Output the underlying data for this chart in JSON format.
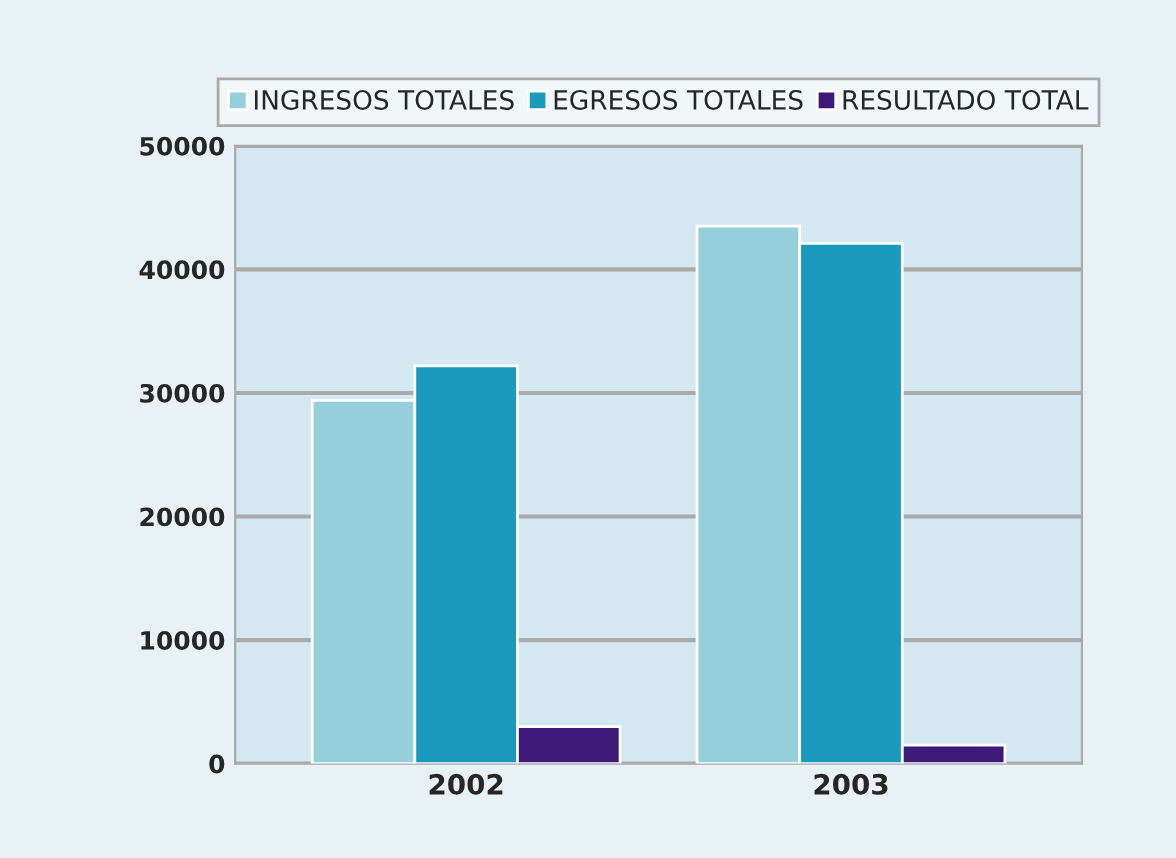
{
  "chart_data": {
    "type": "bar",
    "categories": [
      "2002",
      "2003"
    ],
    "series": [
      {
        "name": "INGRESOS TOTALES",
        "color": "#96cfdc",
        "values": [
          29400,
          43500
        ]
      },
      {
        "name": "EGRESOS TOTALES",
        "color": "#1a9bbd",
        "values": [
          32200,
          42100
        ]
      },
      {
        "name": "RESULTADO TOTAL",
        "color": "#3d1a7a",
        "values": [
          3000,
          1500
        ]
      }
    ],
    "ylim": [
      0,
      50000
    ],
    "yticks": [
      0,
      10000,
      20000,
      30000,
      40000,
      50000
    ],
    "grid": "y",
    "legend": "top"
  }
}
